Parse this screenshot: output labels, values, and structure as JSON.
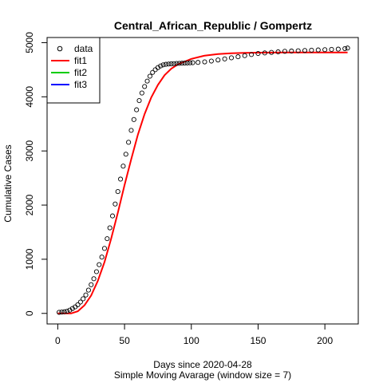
{
  "chart_data": {
    "type": "scatter",
    "title": "Central_African_Republic / Gompertz",
    "xlabel": "Days since 2020-04-28",
    "subtitle": "Simple Moving Avarage (window size = 7)",
    "ylabel": "Cumulative Cases",
    "xlim": [
      -8,
      225
    ],
    "ylim": [
      -195,
      5095
    ],
    "xticks": [
      0,
      50,
      100,
      150,
      200
    ],
    "yticks": [
      0,
      1000,
      2000,
      3000,
      4000,
      5000
    ],
    "grid": false,
    "legend_position": "top-left",
    "legend": [
      {
        "label": "data",
        "kind": "point",
        "color": "#000000"
      },
      {
        "label": "fit1",
        "kind": "line",
        "color": "#ff0000"
      },
      {
        "label": "fit2",
        "kind": "line",
        "color": "#00cd00"
      },
      {
        "label": "fit3",
        "kind": "line",
        "color": "#0000ff"
      }
    ],
    "data_points": {
      "name": "data",
      "x": [
        1,
        3,
        5,
        7,
        9,
        11,
        13,
        15,
        17,
        19,
        21,
        23,
        25,
        27,
        29,
        31,
        33,
        35,
        37,
        39,
        41,
        43,
        45,
        47,
        49,
        51,
        53,
        55,
        57,
        59,
        61,
        63,
        65,
        67,
        69,
        71,
        73,
        75,
        77,
        79,
        81,
        83,
        85,
        87,
        89,
        91,
        93,
        95,
        97,
        99,
        101,
        105,
        110,
        115,
        120,
        125,
        130,
        135,
        140,
        145,
        150,
        155,
        160,
        165,
        170,
        175,
        180,
        185,
        190,
        195,
        200,
        205,
        210,
        215,
        217
      ],
      "y": [
        20,
        25,
        30,
        40,
        60,
        90,
        120,
        160,
        210,
        270,
        340,
        430,
        530,
        640,
        770,
        900,
        1040,
        1200,
        1380,
        1580,
        1800,
        2020,
        2250,
        2480,
        2720,
        2940,
        3160,
        3380,
        3580,
        3760,
        3930,
        4070,
        4190,
        4290,
        4380,
        4450,
        4500,
        4540,
        4570,
        4590,
        4600,
        4605,
        4610,
        4612,
        4615,
        4618,
        4620,
        4622,
        4625,
        4628,
        4630,
        4635,
        4645,
        4660,
        4680,
        4700,
        4720,
        4740,
        4760,
        4780,
        4800,
        4810,
        4820,
        4830,
        4840,
        4845,
        4850,
        4855,
        4860,
        4865,
        4870,
        4875,
        4880,
        4890,
        4900
      ]
    },
    "fits": [
      {
        "name": "fit1",
        "color": "#ff0000",
        "x": [
          0,
          10,
          15,
          20,
          25,
          30,
          35,
          40,
          45,
          50,
          55,
          60,
          65,
          70,
          75,
          80,
          85,
          90,
          100,
          110,
          120,
          130,
          140,
          150,
          160,
          170,
          180,
          190,
          200,
          210,
          217
        ],
        "y": [
          0,
          0,
          40,
          150,
          330,
          600,
          950,
          1380,
          1860,
          2370,
          2850,
          3300,
          3680,
          3990,
          4220,
          4400,
          4520,
          4600,
          4700,
          4760,
          4790,
          4805,
          4812,
          4815,
          4817,
          4818,
          4819,
          4819,
          4820,
          4820,
          4820
        ]
      }
    ]
  }
}
